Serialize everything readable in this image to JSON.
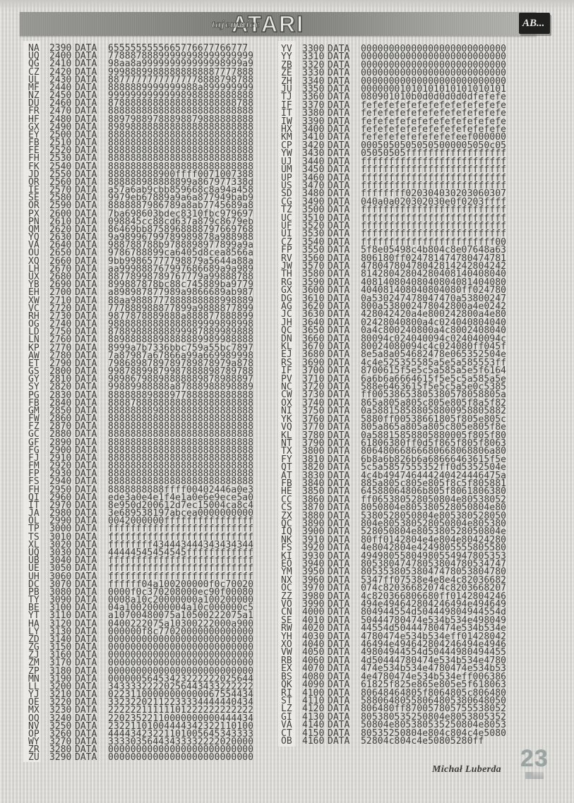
{
  "header": {
    "logo_small": "tajemnice",
    "logo_large": "ATARI",
    "badge": "AB..."
  },
  "listing": {
    "keyword": "DATA",
    "left_rows": [
      [
        "NA",
        "2390",
        "6555555555665776677766777"
      ],
      [
        "UQ",
        "2400",
        "77888788899999998999999999"
      ],
      [
        "QG",
        "2410",
        "98aa8a999999999999998999a9"
      ],
      [
        "CZ",
        "2420",
        "99988899888888888887777888"
      ],
      [
        "UL",
        "2430",
        "88777777777777778888798788"
      ],
      [
        "MF",
        "2440",
        "8888889999999988a899999999"
      ],
      [
        "NZ",
        "2450",
        "99999999999998988888888888"
      ],
      [
        "DU",
        "2460",
        "87888888888888888888888788"
      ],
      [
        "FR",
        "2470",
        "88888888888888888888888888"
      ],
      [
        "HF",
        "2480",
        "88979889788898879888888888"
      ],
      [
        "GX",
        "2490",
        "89898888888888888888888888"
      ],
      [
        "EY",
        "2500",
        "88888888888888888888888888"
      ],
      [
        "FB",
        "2510",
        "88888888888888888888888888"
      ],
      [
        "FE",
        "2520",
        "88888888888888888888888888"
      ],
      [
        "FH",
        "2530",
        "88888888888888888888888888"
      ],
      [
        "FK",
        "2540",
        "88888888888888888888888888"
      ],
      [
        "JD",
        "2550",
        "888888888900ffff0071007388"
      ],
      [
        "OR",
        "2560",
        "888888988888899a867977338d"
      ],
      [
        "IE",
        "2570",
        "a57a6ab9cbb859668c8a94a458"
      ],
      [
        "SE",
        "2580",
        "9979eb67889a9a6a877949bab9"
      ],
      [
        "OR",
        "2590",
        "8888887986789a8ab7745689a8"
      ],
      [
        "PX",
        "2600",
        "7ba698603bdec8310fbc979697"
      ],
      [
        "PN",
        "2610",
        "098845cc88cd637a879c8679eb"
      ],
      [
        "QM",
        "2620",
        "86469bb8758968888797669768"
      ],
      [
        "YQ",
        "2630",
        "9a98996799789989878a988988"
      ],
      [
        "VA",
        "2640",
        "988788788b9788898977899a9a"
      ],
      [
        "OU",
        "2650",
        "9786788899ca6405d8cea8566a"
      ],
      [
        "XQ",
        "2660",
        "9bb99865777798879a5644a88a"
      ],
      [
        "LH",
        "2670",
        "aa999888767997686689a9a989"
      ],
      [
        "UX",
        "2680",
        "88778998789767779a99888788"
      ],
      [
        "YB",
        "2690",
        "899887878bc88c745889ba9779"
      ],
      [
        "EH",
        "2700",
        "a898987877989a9866689ab987"
      ],
      [
        "XW",
        "2710",
        "88aa9888777888888888998889"
      ],
      [
        "VC",
        "2720",
        "777888988877899a9888877899"
      ],
      [
        "RH",
        "2730",
        "9877878889888a888877888899"
      ],
      [
        "OG",
        "2740",
        "98888888888888889999898998"
      ],
      [
        "LD",
        "2750",
        "87889888888899987889989888"
      ],
      [
        "LN",
        "2760",
        "88988888898888889989988888"
      ],
      [
        "KP",
        "2770",
        "8999a7b7336bbc759a55bc7897"
      ],
      [
        "AW",
        "2780",
        "7a87987a67866a99a669989998"
      ],
      [
        "ET",
        "2790",
        "7986898789789789878979a878"
      ],
      [
        "GS",
        "2800",
        "99878899879987888898789788"
      ],
      [
        "GY",
        "2810",
        "98986798898888889878988897"
      ],
      [
        "SY",
        "2820",
        "99889988888a87888988898889"
      ],
      [
        "PG",
        "2830",
        "88888889888977888888888888"
      ],
      [
        "FB",
        "2840",
        "88887888888888888888888888"
      ],
      [
        "GM",
        "2850",
        "88888888988888888888888888"
      ],
      [
        "FW",
        "2860",
        "88888888888888888888888888"
      ],
      [
        "FZ",
        "2870",
        "88888888888888888888888888"
      ],
      [
        "GC",
        "2880",
        "88888888888888888888888888"
      ],
      [
        "GF",
        "2890",
        "88888888888888888888888888"
      ],
      [
        "FG",
        "2900",
        "88888888888888888888888888"
      ],
      [
        "FJ",
        "2910",
        "88888888888888888888888888"
      ],
      [
        "FM",
        "2920",
        "88888888888888888888888888"
      ],
      [
        "FP",
        "2930",
        "88888888888888888888888888"
      ],
      [
        "FS",
        "2940",
        "88888888888888888888888888"
      ],
      [
        "FH",
        "2950",
        "8888888888ffff00402446a0e3"
      ],
      [
        "QI",
        "2960",
        "ede3a0e4e1f4e1a0e6e9ece5a0"
      ],
      [
        "IT",
        "2970",
        "8e950d200612d7ec15004ca8c4"
      ],
      [
        "JA",
        "2980",
        "3e689538197abcea0000000000"
      ],
      [
        "OL",
        "2990",
        "0042000000ffffffffffffffff"
      ],
      [
        "TP",
        "3000",
        "ffffffffffffffffffffffffff"
      ],
      [
        "TS",
        "3010",
        "ffffffffffffffffffffffffff"
      ],
      [
        "XL",
        "3020",
        "ffffffff434443444343434344"
      ],
      [
        "UQ",
        "3030",
        "44444545454545ffffffffffff"
      ],
      [
        "UB",
        "3040",
        "ffffffffffffffffffffffffff"
      ],
      [
        "UE",
        "3050",
        "ffffffffffffffffffffffffff"
      ],
      [
        "UH",
        "3060",
        "ffffffffffffffffffffffffff"
      ],
      [
        "DC",
        "3070",
        "ffffff04a100200000f0c70020"
      ],
      [
        "PB",
        "3080",
        "0000f0c370208000ec90f00080"
      ],
      [
        "TY",
        "3090",
        "0008a10c20000000a100200000"
      ],
      [
        "BE",
        "3100",
        "04a10020000004a10c000000c5"
      ],
      [
        "YT",
        "3110",
        "a10700480075a10500222075a1"
      ],
      [
        "HA",
        "3120",
        "0400222075a10300222000a900"
      ],
      [
        "LY",
        "3130",
        "000000f8c77020000000000000"
      ],
      [
        "ZD",
        "3140",
        "00000000000000000000000000"
      ],
      [
        "ZG",
        "3150",
        "00000000000000000000000000"
      ],
      [
        "ZJ",
        "3160",
        "00000000000000000000000000"
      ],
      [
        "ZM",
        "3170",
        "00000000000000000000000000"
      ],
      [
        "ZP",
        "3180",
        "00000000000000000000000000"
      ],
      [
        "MN",
        "3190",
        "00000056453423222222025644"
      ],
      [
        "LL",
        "3200",
        "34333322220256443433222222"
      ],
      [
        "YJ",
        "3210",
        "02231100000000000067554434"
      ],
      [
        "OE",
        "3220",
        "33232202112233334444440434"
      ],
      [
        "MX",
        "3230",
        "22222211111101222222222222"
      ],
      [
        "OQ",
        "3240",
        "22023522110000000000444434"
      ],
      [
        "NV",
        "3250",
        "23221101004444342322110100"
      ],
      [
        "OP",
        "3260",
        "44443423221101005645343333"
      ],
      [
        "WY",
        "3270",
        "33330356443433332222020000"
      ],
      [
        "ZR",
        "3280",
        "00000000000000000000000000"
      ],
      [
        "ZU",
        "3290",
        "00000000000000000000000000"
      ]
    ],
    "right_rows": [
      [
        "YV",
        "3300",
        "00000000000000000000000000"
      ],
      [
        "YY",
        "3310",
        "00000000000000000000000000"
      ],
      [
        "ZB",
        "3320",
        "00000000000000000000000000"
      ],
      [
        "ZE",
        "3330",
        "00000000000000000000000000"
      ],
      [
        "ZH",
        "3340",
        "00000000000000000000000000"
      ],
      [
        "JU",
        "3350",
        "00000001010101010101010101"
      ],
      [
        "TJ",
        "3360",
        "080901010b0d0d0d0d0dfefefe"
      ],
      [
        "IF",
        "3370",
        "fefefefefefefefefefefefefe"
      ],
      [
        "IT",
        "3380",
        "fefefefefefefefefefefefefe"
      ],
      [
        "IW",
        "3390",
        "fefefefefefefefefefefefefe"
      ],
      [
        "HX",
        "3400",
        "fefefefefefefefefefefefefe"
      ],
      [
        "KM",
        "3410",
        "fefefefefefefefefeef000000"
      ],
      [
        "CP",
        "3420",
        "00050505050505000005050c05"
      ],
      [
        "YW",
        "3430",
        "05050505ffffffffffffffffff"
      ],
      [
        "UJ",
        "3440",
        "ffffffffffffffffffffffffff"
      ],
      [
        "UM",
        "3450",
        "ffffffffffffffffffffffffff"
      ],
      [
        "UP",
        "3460",
        "ffffffffffffffffffffffffff"
      ],
      [
        "US",
        "3470",
        "ffffffffffffffffffffffffff"
      ],
      [
        "SD",
        "3480",
        "ffffffff020304030203060307"
      ],
      [
        "CG",
        "3490",
        "040a0a020302030e0f0203ffff"
      ],
      [
        "TZ",
        "3500",
        "ffffffffffffffffffffffffff"
      ],
      [
        "UC",
        "3510",
        "ffffffffffffffffffffffffff"
      ],
      [
        "UF",
        "3520",
        "ffffffffffffffffffffffffff"
      ],
      [
        "UI",
        "3530",
        "ffffffffffffffffffffffffff"
      ],
      [
        "CZ",
        "3540",
        "ffffffffffffffffffffffff00"
      ],
      [
        "FP",
        "3550",
        "5f8e05498c4b804c8e07648a63"
      ],
      [
        "RV",
        "3560",
        "806180ff024781474780474781"
      ],
      [
        "JW",
        "3570",
        "47804780478042814242804242"
      ],
      [
        "TH",
        "3580",
        "81428042804280408140408040"
      ],
      [
        "RG",
        "3590",
        "40814080408040804081404080"
      ],
      [
        "GX",
        "3600",
        "404081408040804080ff024780"
      ],
      [
        "DG",
        "3610",
        "0a530247478047470a53800247"
      ],
      [
        "AG",
        "3620",
        "800a538002478042800a4e0242"
      ],
      [
        "JC",
        "3630",
        "428042420a4e800242800a4e80"
      ],
      [
        "JH",
        "3640",
        "02428040800a4c024040804040"
      ],
      [
        "QC",
        "3650",
        "0a4c800240800a4c8002408040"
      ],
      [
        "DN",
        "3660",
        "80094c024040094c024040094c"
      ],
      [
        "KL",
        "3670",
        "80024080094c4c024080ff045f"
      ],
      [
        "EJ",
        "3680",
        "8e5a8a054682478e065352504e"
      ],
      [
        "RS",
        "3690",
        "4c4e525355585a5e5a585553ff"
      ],
      [
        "IF",
        "3700",
        "8700615f5e5c5a585a5e5f6164"
      ],
      [
        "PV",
        "3710",
        "6a6b6a6664615f5e5c5a585a5e"
      ],
      [
        "NC",
        "3720",
        "588e6463615f5e5c5a5e0c5385"
      ],
      [
        "CW",
        "3730",
        "ff00538653805380578058805a"
      ],
      [
        "OX",
        "3740",
        "865a805a805c805e805f8a5f82"
      ],
      [
        "NI",
        "3750",
        "0a588158588058800958805882"
      ],
      [
        "YK",
        "3760",
        "5880ff00538661805f805e805c"
      ],
      [
        "VQ",
        "3770",
        "805a865a805a805c805e805f8e"
      ],
      [
        "KL",
        "3780",
        "0a58815858805880005f805f80"
      ],
      [
        "NT",
        "3790",
        "61806380ff0d5f865f805f8063"
      ],
      [
        "TX",
        "3800",
        "80648066866680668068806a80"
      ],
      [
        "FY",
        "3810",
        "6b8a6b826b6a68666463615f5e"
      ],
      [
        "QT",
        "3820",
        "5c5a5857555352ff0d5352504e"
      ],
      [
        "AT",
        "3830",
        "4c4b494746444240424446475a"
      ],
      [
        "FB",
        "3840",
        "885a805c805e805f8c5f805881"
      ],
      [
        "HE",
        "3850",
        "64588064806b805f8061806380"
      ],
      [
        "CC",
        "3860",
        "ff065380528050804e80538052"
      ],
      [
        "CS",
        "3870",
        "8050804e805380528050804e80"
      ],
      [
        "ZX",
        "3880",
        "5380528050804e805380528050"
      ],
      [
        "QC",
        "3890",
        "804e805380528050804e805380"
      ],
      [
        "IQ",
        "3900",
        "528050804e805380528050804e"
      ],
      [
        "NK",
        "3910",
        "80ff0142804e4e804e80424280"
      ],
      [
        "FS",
        "3920",
        "4e8042804e4249805555805580"
      ],
      [
        "KI",
        "3930",
        "49498055804980554947805353"
      ],
      [
        "EO",
        "3940",
        "80538047478053804780534747"
      ],
      [
        "YM",
        "3950",
        "80535380538047478053804780"
      ],
      [
        "NX",
        "3960",
        "5347ff07538e4e8e4c82036682"
      ],
      [
        "OC",
        "3970",
        "074c82036682074c8203668207"
      ],
      [
        "ZZ",
        "3980",
        "4c820366806680ff0142804246"
      ],
      [
        "VO",
        "3990",
        "494e494642804246494e494649"
      ],
      [
        "CN",
        "4000",
        "804944554d504449804944554d"
      ],
      [
        "SE",
        "4010",
        "50444780474e534b534e498049"
      ],
      [
        "RW",
        "4020",
        "44554d50444780474e534b534e"
      ],
      [
        "YH",
        "4030",
        "4780474e534b534eff01428042"
      ],
      [
        "XO",
        "4040",
        "46494e494642804246494e4946"
      ],
      [
        "VW",
        "4050",
        "49804944554d50444980494455"
      ],
      [
        "RB",
        "4060",
        "4d50444780474e534b534e4780"
      ],
      [
        "EX",
        "4070",
        "474e534b534e4780474e534b53"
      ],
      [
        "BS",
        "4080",
        "4e4780474e534b534eff006386"
      ],
      [
        "QK",
        "4090",
        "61825f825e865e805e5f618063"
      ],
      [
        "RI",
        "4100",
        "80648464805f8064805c806480"
      ],
      [
        "ST",
        "4110",
        "58806480558064805380648050"
      ],
      [
        "LZ",
        "4120",
        "806480ff870057805755538052"
      ],
      [
        "GI",
        "4130",
        "805380535250804e8053805352"
      ],
      [
        "VA",
        "4140",
        "50804e805380535250804e8053"
      ],
      [
        "CT",
        "4150",
        "80535250804e804c804c4e5080"
      ],
      [
        "OB",
        "4160",
        "52804c804c4e50805280ff"
      ]
    ]
  },
  "footer": {
    "author": "Michał Luberda",
    "page_number": "23"
  },
  "colors": {
    "page_background": "#d8d7d3",
    "listing_text": "#3e3e3c",
    "checksum_band": "#eceae6",
    "header_band": "#8c8c88",
    "badge_background": "#20201e",
    "badge_text": "#e9e9e5",
    "page_number": "#9aa4a3"
  }
}
